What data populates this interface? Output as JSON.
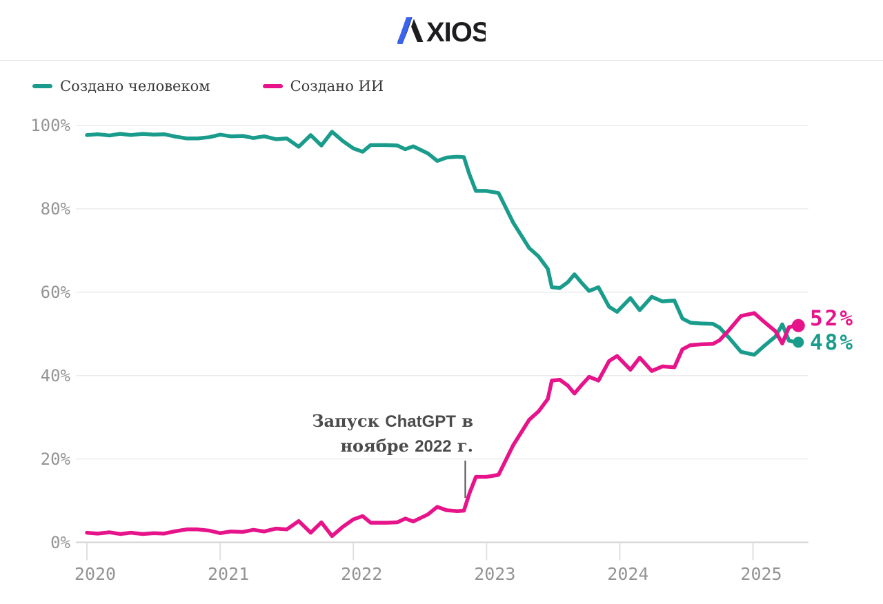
{
  "header": {
    "logo_text": "AXIOS",
    "logo_xios": "XIOS"
  },
  "colors": {
    "human_teal": "#1a9c8c",
    "ai_pink": "#e6138a",
    "grid_line": "#ececec",
    "axis_line": "#d2d2d2",
    "tick_line": "#e0e0e0",
    "axis_text": "#949494",
    "annotation_text": "#4b4b4b",
    "legend_text": "#3a3a3a",
    "logo_black": "#1d1d20",
    "logo_blue": "#3b64ee"
  },
  "chart_data": {
    "type": "line",
    "title": "",
    "xlabel": "",
    "ylabel": "",
    "ylim": [
      0,
      100
    ],
    "xlim": [
      2020,
      2025.45
    ],
    "grid": true,
    "legend_position": "top-left",
    "x": [
      2020.0,
      2020.08,
      2020.17,
      2020.25,
      2020.33,
      2020.42,
      2020.5,
      2020.58,
      2020.67,
      2020.75,
      2020.83,
      2020.92,
      2021.0,
      2021.08,
      2021.17,
      2021.25,
      2021.33,
      2021.42,
      2021.5,
      2021.59,
      2021.68,
      2021.76,
      2021.84,
      2021.92,
      2022.0,
      2022.07,
      2022.13,
      2022.25,
      2022.33,
      2022.39,
      2022.45,
      2022.56,
      2022.63,
      2022.7,
      2022.78,
      2022.83,
      2022.87,
      2022.92,
      2023.0,
      2023.09,
      2023.2,
      2023.32,
      2023.39,
      2023.46,
      2023.49,
      2023.55,
      2023.61,
      2023.66,
      2023.71,
      2023.77,
      2023.84,
      2023.92,
      2023.98,
      2024.08,
      2024.15,
      2024.24,
      2024.32,
      2024.41,
      2024.47,
      2024.53,
      2024.61,
      2024.7,
      2024.75,
      2024.82,
      2024.91,
      2025.01,
      2025.08,
      2025.17,
      2025.22,
      2025.27,
      2025.32
    ],
    "series": [
      {
        "name": "Создано человеком",
        "color": "#1a9c8c",
        "values": [
          97.7,
          97.9,
          97.6,
          98.0,
          97.7,
          98.0,
          97.8,
          97.9,
          97.3,
          96.9,
          96.9,
          97.2,
          97.8,
          97.4,
          97.5,
          97.0,
          97.4,
          96.7,
          96.9,
          94.9,
          97.7,
          95.2,
          98.5,
          96.3,
          94.5,
          93.7,
          95.3,
          95.3,
          95.2,
          94.3,
          95.0,
          93.3,
          91.5,
          92.3,
          92.5,
          92.4,
          88.4,
          84.3,
          84.3,
          83.8,
          76.7,
          70.6,
          68.6,
          65.6,
          61.2,
          61.0,
          62.4,
          64.3,
          62.4,
          60.3,
          61.2,
          56.5,
          55.3,
          58.6,
          55.7,
          58.9,
          57.8,
          58.0,
          53.7,
          52.7,
          52.5,
          52.4,
          51.5,
          49.1,
          45.7,
          45.0,
          47.0,
          49.4,
          52.3,
          48.4,
          48.0
        ]
      },
      {
        "name": "Создано ИИ",
        "color": "#e6138a",
        "values": [
          2.3,
          2.1,
          2.4,
          2.0,
          2.3,
          2.0,
          2.2,
          2.1,
          2.7,
          3.1,
          3.1,
          2.8,
          2.2,
          2.6,
          2.5,
          3.0,
          2.6,
          3.3,
          3.1,
          5.1,
          2.3,
          4.8,
          1.5,
          3.7,
          5.5,
          6.3,
          4.7,
          4.7,
          4.8,
          5.7,
          5.0,
          6.7,
          8.5,
          7.7,
          7.5,
          7.6,
          11.6,
          15.7,
          15.7,
          16.2,
          23.3,
          29.4,
          31.4,
          34.4,
          38.8,
          39.0,
          37.6,
          35.7,
          37.6,
          39.7,
          38.8,
          43.5,
          44.7,
          41.4,
          44.3,
          41.1,
          42.2,
          42.0,
          46.3,
          47.3,
          47.5,
          47.6,
          48.5,
          50.9,
          54.3,
          55.0,
          53.0,
          50.6,
          47.7,
          51.6,
          52.0
        ]
      }
    ],
    "yticks": [
      {
        "label": "100%",
        "value": 100
      },
      {
        "label": "80%",
        "value": 80
      },
      {
        "label": "60%",
        "value": 60
      },
      {
        "label": "40%",
        "value": 40
      },
      {
        "label": "20%",
        "value": 20
      },
      {
        "label": "0%",
        "value": 0
      }
    ],
    "xticks": [
      {
        "label": "2020",
        "value": 2020
      },
      {
        "label": "2021",
        "value": 2021
      },
      {
        "label": "2022",
        "value": 2022
      },
      {
        "label": "2023",
        "value": 2023
      },
      {
        "label": "2024",
        "value": 2024
      },
      {
        "label": "2025",
        "value": 2025
      }
    ],
    "end_labels": [
      {
        "text": "52%",
        "series": "Создано ИИ",
        "color": "#e6138a",
        "value": 52
      },
      {
        "text": "48%",
        "series": "Создано человеком",
        "color": "#1a9c8c",
        "value": 48
      }
    ],
    "annotation": {
      "full_text": "Запуск ChatGPT в ноябре 2022 г.",
      "line1_pre": "Запуск ",
      "line1_brand": "ChatGPT",
      "line1_post": " в",
      "line2_pre": "ноябре ",
      "line2_num": "2022",
      "line2_post": " г.",
      "x_year": 2022.84
    }
  }
}
